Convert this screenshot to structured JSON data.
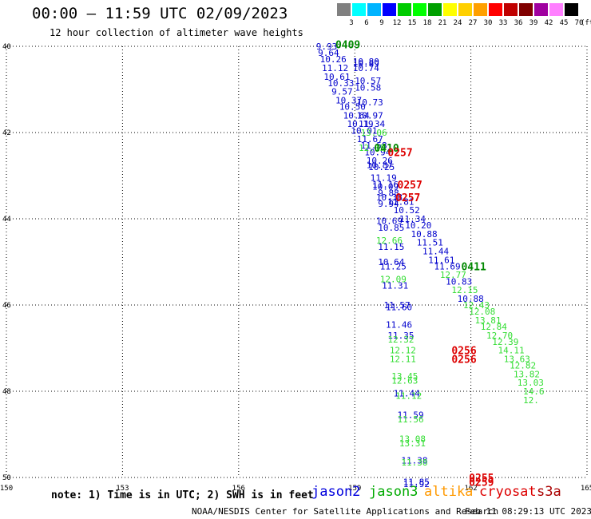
{
  "header": {
    "title": "00:00 – 11:59 UTC 02/09/2023",
    "subtitle": "12 hour collection of altimeter wave heights"
  },
  "color_scale": {
    "labels": [
      "3",
      "6",
      "9",
      "12",
      "15",
      "18",
      "21",
      "24",
      "27",
      "30",
      "33",
      "36",
      "39",
      "42",
      "45",
      "70"
    ],
    "unit": "(ft)",
    "colors": [
      "#808080",
      "#00ffff",
      "#00b4ff",
      "#0000ff",
      "#00cc00",
      "#00ff00",
      "#00a000",
      "#ffff00",
      "#ffd000",
      "#ffa000",
      "#ff0000",
      "#c00000",
      "#800000",
      "#a000a0",
      "#ff80ff",
      "#000000"
    ]
  },
  "map": {
    "lon_range": [
      150,
      165
    ],
    "lat_range": [
      40,
      50
    ],
    "lon_ticks": [
      "150",
      "153",
      "156",
      "159",
      "162",
      "165"
    ],
    "lat_ticks": [
      "40",
      "42",
      "44",
      "46",
      "48",
      "50"
    ],
    "points": [
      {
        "lon": 158.0,
        "lat": 40.0,
        "text": "9.93",
        "c": "#0000cc"
      },
      {
        "lon": 158.05,
        "lat": 40.15,
        "text": "9.64",
        "c": "#0000cc"
      },
      {
        "lon": 158.1,
        "lat": 40.3,
        "text": "10.26",
        "c": "#0000cc"
      },
      {
        "lon": 158.15,
        "lat": 40.5,
        "text": "11.12",
        "c": "#0000cc"
      },
      {
        "lon": 158.2,
        "lat": 40.7,
        "text": "10.61",
        "c": "#0000cc"
      },
      {
        "lon": 158.3,
        "lat": 40.85,
        "text": "10.33",
        "c": "#0000cc"
      },
      {
        "lon": 158.4,
        "lat": 41.05,
        "text": "9.57",
        "c": "#0000cc"
      },
      {
        "lon": 158.5,
        "lat": 41.25,
        "text": "10.37",
        "c": "#0000cc"
      },
      {
        "lon": 158.6,
        "lat": 41.4,
        "text": "10.50",
        "c": "#0000cc"
      },
      {
        "lon": 158.7,
        "lat": 41.6,
        "text": "10.64",
        "c": "#0000cc"
      },
      {
        "lon": 158.8,
        "lat": 41.8,
        "text": "10.19",
        "c": "#0000cc"
      },
      {
        "lon": 158.9,
        "lat": 41.95,
        "text": "10.01",
        "c": "#0000cc"
      },
      {
        "lon": 159.05,
        "lat": 42.15,
        "text": "11.67",
        "c": "#0000cc"
      },
      {
        "lon": 159.15,
        "lat": 42.3,
        "text": "11.58",
        "c": "#0000cc"
      },
      {
        "lon": 159.25,
        "lat": 42.45,
        "text": "10.94",
        "c": "#0000cc"
      },
      {
        "lon": 159.3,
        "lat": 42.65,
        "text": "10.26",
        "c": "#0000cc"
      },
      {
        "lon": 159.35,
        "lat": 42.8,
        "text": "10.25",
        "c": "#0000cc"
      },
      {
        "lon": 159.4,
        "lat": 43.05,
        "text": "11.19",
        "c": "#0000cc"
      },
      {
        "lon": 159.45,
        "lat": 43.2,
        "text": "11.16",
        "c": "#0000cc"
      },
      {
        "lon": 159.6,
        "lat": 43.4,
        "text": "9.88",
        "c": "#0000cc"
      },
      {
        "lon": 159.55,
        "lat": 43.5,
        "text": "10.38",
        "c": "#0000cc"
      },
      {
        "lon": 159.6,
        "lat": 43.65,
        "text": "9.94",
        "c": "#0000cc"
      },
      {
        "lon": 159.85,
        "lat": 43.6,
        "text": "11.81",
        "c": "#0000cc"
      },
      {
        "lon": 160.0,
        "lat": 43.8,
        "text": "10.52",
        "c": "#0000cc"
      },
      {
        "lon": 160.15,
        "lat": 44.0,
        "text": "11.34",
        "c": "#0000cc"
      },
      {
        "lon": 159.55,
        "lat": 44.05,
        "text": "10.69",
        "c": "#0000cc"
      },
      {
        "lon": 160.3,
        "lat": 44.15,
        "text": "10.20",
        "c": "#0000cc"
      },
      {
        "lon": 159.6,
        "lat": 44.2,
        "text": "10.85",
        "c": "#0000cc"
      },
      {
        "lon": 160.45,
        "lat": 44.35,
        "text": "10.88",
        "c": "#0000cc"
      },
      {
        "lon": 159.55,
        "lat": 44.5,
        "text": "12.66",
        "c": "#33dd33"
      },
      {
        "lon": 160.6,
        "lat": 44.55,
        "text": "11.51",
        "c": "#0000cc"
      },
      {
        "lon": 159.6,
        "lat": 44.65,
        "text": "11.15",
        "c": "#0000cc"
      },
      {
        "lon": 160.75,
        "lat": 44.75,
        "text": "11.44",
        "c": "#0000cc"
      },
      {
        "lon": 160.9,
        "lat": 44.95,
        "text": "11.61",
        "c": "#0000cc"
      },
      {
        "lon": 159.6,
        "lat": 45.0,
        "text": "10.64",
        "c": "#0000cc"
      },
      {
        "lon": 161.05,
        "lat": 45.1,
        "text": "11.69",
        "c": "#0000cc"
      },
      {
        "lon": 159.65,
        "lat": 45.1,
        "text": "11.25",
        "c": "#0000cc"
      },
      {
        "lon": 161.2,
        "lat": 45.3,
        "text": "12.77",
        "c": "#33dd33"
      },
      {
        "lon": 159.65,
        "lat": 45.4,
        "text": "12.09",
        "c": "#33dd33"
      },
      {
        "lon": 161.35,
        "lat": 45.45,
        "text": "10.83",
        "c": "#0000cc"
      },
      {
        "lon": 159.7,
        "lat": 45.55,
        "text": "11.31",
        "c": "#0000cc"
      },
      {
        "lon": 161.5,
        "lat": 45.65,
        "text": "12.15",
        "c": "#33dd33"
      },
      {
        "lon": 161.65,
        "lat": 45.85,
        "text": "10.88",
        "c": "#0000cc"
      },
      {
        "lon": 161.8,
        "lat": 46.0,
        "text": "12.43",
        "c": "#33dd33"
      },
      {
        "lon": 159.75,
        "lat": 46.0,
        "text": "11.57",
        "c": "#0000cc"
      },
      {
        "lon": 159.8,
        "lat": 46.05,
        "text": "11.60",
        "c": "#0000cc"
      },
      {
        "lon": 161.95,
        "lat": 46.15,
        "text": "12.08",
        "c": "#33dd33"
      },
      {
        "lon": 162.1,
        "lat": 46.35,
        "text": "13.81",
        "c": "#33dd33"
      },
      {
        "lon": 159.8,
        "lat": 46.45,
        "text": "11.46",
        "c": "#0000cc"
      },
      {
        "lon": 162.25,
        "lat": 46.5,
        "text": "12.84",
        "c": "#33dd33"
      },
      {
        "lon": 159.85,
        "lat": 46.7,
        "text": "11.35",
        "c": "#0000cc"
      },
      {
        "lon": 162.4,
        "lat": 46.7,
        "text": "12.70",
        "c": "#33dd33"
      },
      {
        "lon": 159.85,
        "lat": 46.8,
        "text": "12.32",
        "c": "#33dd33"
      },
      {
        "lon": 162.55,
        "lat": 46.85,
        "text": "12.39",
        "c": "#33dd33"
      },
      {
        "lon": 159.9,
        "lat": 47.05,
        "text": "12.12",
        "c": "#33dd33"
      },
      {
        "lon": 162.7,
        "lat": 47.05,
        "text": "14.11",
        "c": "#33dd33"
      },
      {
        "lon": 159.9,
        "lat": 47.25,
        "text": "12.11",
        "c": "#33dd33"
      },
      {
        "lon": 162.85,
        "lat": 47.25,
        "text": "13.63",
        "c": "#33dd33"
      },
      {
        "lon": 163.0,
        "lat": 47.4,
        "text": "12.82",
        "c": "#33dd33"
      },
      {
        "lon": 163.1,
        "lat": 47.6,
        "text": "13.82",
        "c": "#33dd33"
      },
      {
        "lon": 159.95,
        "lat": 47.65,
        "text": "13.45",
        "c": "#33dd33"
      },
      {
        "lon": 159.95,
        "lat": 47.75,
        "text": "12.63",
        "c": "#33dd33"
      },
      {
        "lon": 163.2,
        "lat": 47.8,
        "text": "13.03",
        "c": "#33dd33"
      },
      {
        "lon": 163.35,
        "lat": 48.0,
        "text": "14.6",
        "c": "#33dd33"
      },
      {
        "lon": 160.0,
        "lat": 48.05,
        "text": "11.44",
        "c": "#0000cc"
      },
      {
        "lon": 160.05,
        "lat": 48.1,
        "text": "11.12",
        "c": "#33dd33"
      },
      {
        "lon": 163.35,
        "lat": 48.2,
        "text": "12.",
        "c": "#33dd33"
      },
      {
        "lon": 160.1,
        "lat": 48.55,
        "text": "11.59",
        "c": "#0000cc"
      },
      {
        "lon": 160.1,
        "lat": 48.65,
        "text": "11.56",
        "c": "#33dd33"
      },
      {
        "lon": 160.15,
        "lat": 49.1,
        "text": "13.08",
        "c": "#33dd33"
      },
      {
        "lon": 160.15,
        "lat": 49.2,
        "text": "13.31",
        "c": "#33dd33"
      },
      {
        "lon": 160.2,
        "lat": 49.6,
        "text": "11.38",
        "c": "#0000cc"
      },
      {
        "lon": 160.2,
        "lat": 49.65,
        "text": "11.38",
        "c": "#33dd33"
      },
      {
        "lon": 160.25,
        "lat": 50.1,
        "text": "11.85",
        "c": "#0000cc"
      },
      {
        "lon": 160.25,
        "lat": 50.15,
        "text": "11.92",
        "c": "#0000cc"
      },
      {
        "lon": 158.95,
        "lat": 40.35,
        "text": "10.80",
        "c": "#0000cc"
      },
      {
        "lon": 158.95,
        "lat": 40.4,
        "text": "10.89",
        "c": "#0000cc"
      },
      {
        "lon": 158.95,
        "lat": 40.5,
        "text": "10.74",
        "c": "#0000cc"
      },
      {
        "lon": 159.0,
        "lat": 40.8,
        "text": "10.57",
        "c": "#0000cc"
      },
      {
        "lon": 159.0,
        "lat": 40.95,
        "text": "10.58",
        "c": "#0000cc"
      },
      {
        "lon": 159.05,
        "lat": 41.3,
        "text": "10.73",
        "c": "#0000cc"
      },
      {
        "lon": 159.05,
        "lat": 41.6,
        "text": "10.97",
        "c": "#0000cc"
      },
      {
        "lon": 159.1,
        "lat": 41.8,
        "text": "11.34",
        "c": "#0000cc"
      },
      {
        "lon": 159.15,
        "lat": 42.0,
        "text": "13.06",
        "c": "#33dd33"
      },
      {
        "lon": 159.1,
        "lat": 42.35,
        "text": "12.15",
        "c": "#33dd33"
      },
      {
        "lon": 159.3,
        "lat": 42.75,
        "text": "10.87",
        "c": "#0000cc"
      },
      {
        "lon": 159.45,
        "lat": 43.25,
        "text": "10.09",
        "c": "#0000cc"
      }
    ],
    "time_labels": [
      {
        "lon": 158.5,
        "lat": 39.95,
        "text": "0409",
        "c": "#008800"
      },
      {
        "lon": 159.5,
        "lat": 42.35,
        "text": "0410",
        "c": "#008800"
      },
      {
        "lon": 159.85,
        "lat": 42.45,
        "text": "0257",
        "c": "#dd0000"
      },
      {
        "lon": 160.1,
        "lat": 43.2,
        "text": "0257",
        "c": "#dd0000"
      },
      {
        "lon": 160.05,
        "lat": 43.5,
        "text": "0257",
        "c": "#dd0000"
      },
      {
        "lon": 161.75,
        "lat": 45.1,
        "text": "0411",
        "c": "#008800"
      },
      {
        "lon": 161.5,
        "lat": 47.05,
        "text": "0256",
        "c": "#dd0000"
      },
      {
        "lon": 161.5,
        "lat": 47.25,
        "text": "0256",
        "c": "#dd0000"
      },
      {
        "lon": 161.95,
        "lat": 50.0,
        "text": "0255",
        "c": "#dd0000"
      },
      {
        "lon": 161.95,
        "lat": 50.1,
        "text": "0259",
        "c": "#dd0000"
      }
    ]
  },
  "note": "note: 1) Time is in UTC; 2) SWH is in feet",
  "legend": [
    {
      "name": "jason2",
      "color": "#0000dd"
    },
    {
      "name": "jason3",
      "color": "#00aa00"
    },
    {
      "name": "altika",
      "color": "#ff9900"
    },
    {
      "name": "cryosat",
      "color": "#dd0000"
    },
    {
      "name": "s3a",
      "color": "#aa0000"
    }
  ],
  "footer": {
    "left": "NOAA/NESDIS Center for Satellite Applications and Research",
    "right": "Feb 11 08:29:13 UTC 2023"
  }
}
